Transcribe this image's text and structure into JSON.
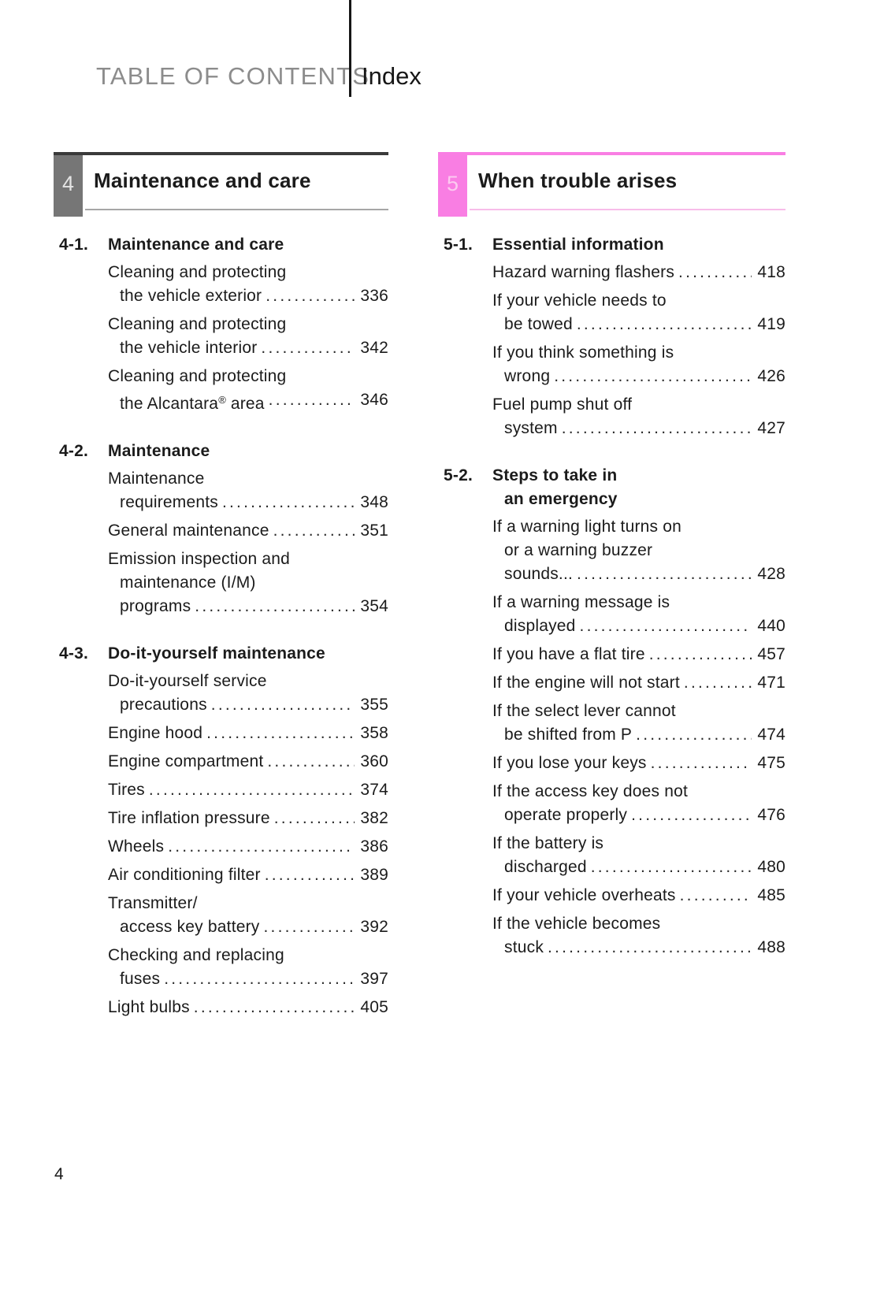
{
  "header": {
    "left_title": "TABLE OF CONTENTS",
    "right_title": "Index"
  },
  "footer": {
    "page_number": "4"
  },
  "themes": {
    "gray": {
      "box": "#767676",
      "box_number": "#e4e4e4",
      "top_line": "#3a3a3a",
      "under_line": "#a6a6a6"
    },
    "pink": {
      "box": "#f97ee3",
      "box_number": "#fccaf0",
      "top_line": "#f97ee3",
      "under_line": "#f8bce9"
    }
  },
  "columns": [
    {
      "banner": {
        "number": "4",
        "title": "Maintenance and care",
        "theme": "gray"
      },
      "sections": [
        {
          "label": "4-1.",
          "title_lines": [
            "Maintenance and care"
          ],
          "entries": [
            {
              "lines": [
                "Cleaning and protecting",
                "the vehicle exterior"
              ],
              "page": "336"
            },
            {
              "lines": [
                "Cleaning and protecting",
                "the vehicle interior"
              ],
              "page": "342"
            },
            {
              "lines": [
                "Cleaning and protecting",
                "the Alcantara® area"
              ],
              "page": "346"
            }
          ]
        },
        {
          "label": "4-2.",
          "title_lines": [
            "Maintenance"
          ],
          "entries": [
            {
              "lines": [
                "Maintenance",
                "requirements"
              ],
              "page": "348"
            },
            {
              "lines": [
                "General maintenance"
              ],
              "page": "351"
            },
            {
              "lines": [
                "Emission inspection and",
                "maintenance (I/M)",
                "programs"
              ],
              "page": "354"
            }
          ]
        },
        {
          "label": "4-3.",
          "title_lines": [
            "Do-it-yourself maintenance"
          ],
          "entries": [
            {
              "lines": [
                "Do-it-yourself service",
                "precautions"
              ],
              "page": "355"
            },
            {
              "lines": [
                "Engine hood"
              ],
              "page": "358"
            },
            {
              "lines": [
                "Engine compartment"
              ],
              "page": "360"
            },
            {
              "lines": [
                "Tires"
              ],
              "page": "374"
            },
            {
              "lines": [
                "Tire inflation pressure"
              ],
              "page": "382"
            },
            {
              "lines": [
                "Wheels"
              ],
              "page": "386"
            },
            {
              "lines": [
                "Air conditioning filter"
              ],
              "page": "389"
            },
            {
              "lines": [
                "Transmitter/",
                "access key battery"
              ],
              "page": "392"
            },
            {
              "lines": [
                "Checking and replacing",
                "fuses"
              ],
              "page": "397"
            },
            {
              "lines": [
                "Light bulbs"
              ],
              "page": "405"
            }
          ]
        }
      ]
    },
    {
      "banner": {
        "number": "5",
        "title": "When trouble arises",
        "theme": "pink"
      },
      "sections": [
        {
          "label": "5-1.",
          "title_lines": [
            "Essential information"
          ],
          "entries": [
            {
              "lines": [
                "Hazard warning flashers"
              ],
              "page": "418"
            },
            {
              "lines": [
                "If your vehicle needs to",
                "be towed"
              ],
              "page": "419"
            },
            {
              "lines": [
                "If you think something is",
                "wrong"
              ],
              "page": "426"
            },
            {
              "lines": [
                "Fuel pump shut off",
                "system"
              ],
              "page": "427"
            }
          ]
        },
        {
          "label": "5-2.",
          "title_lines": [
            "Steps to take in",
            "an emergency"
          ],
          "entries": [
            {
              "lines": [
                "If a warning light turns on",
                "or a warning buzzer",
                "sounds..."
              ],
              "page": "428"
            },
            {
              "lines": [
                "If a warning message is",
                "displayed"
              ],
              "page": "440"
            },
            {
              "lines": [
                "If you have a flat tire"
              ],
              "page": "457"
            },
            {
              "lines": [
                "If the engine will not start"
              ],
              "page": "471"
            },
            {
              "lines": [
                "If the select lever cannot",
                "be shifted from P"
              ],
              "page": "474"
            },
            {
              "lines": [
                "If you lose your keys"
              ],
              "page": "475"
            },
            {
              "lines": [
                "If the access key does not",
                "operate properly"
              ],
              "page": "476"
            },
            {
              "lines": [
                "If the battery is",
                "discharged"
              ],
              "page": "480"
            },
            {
              "lines": [
                "If your vehicle overheats"
              ],
              "page": "485"
            },
            {
              "lines": [
                "If the vehicle becomes",
                "stuck"
              ],
              "page": "488"
            }
          ]
        }
      ]
    }
  ]
}
